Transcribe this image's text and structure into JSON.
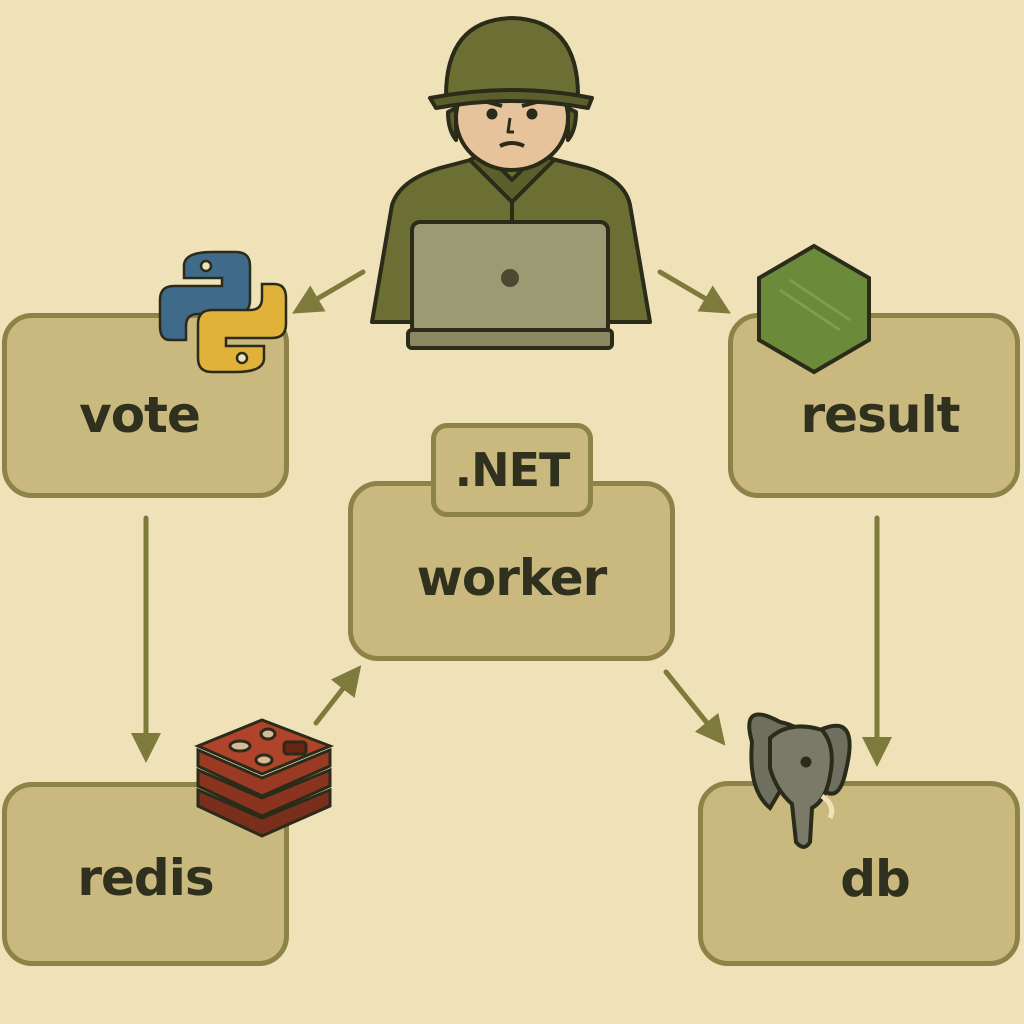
{
  "nodes": {
    "vote": {
      "label": "vote",
      "icon": "python-logo-icon"
    },
    "result": {
      "label": "result",
      "icon": "nodejs-hexagon-icon"
    },
    "worker": {
      "label": "worker",
      "tag": ".NET"
    },
    "redis": {
      "label": "redis",
      "icon": "redis-stack-icon"
    },
    "db": {
      "label": "db",
      "icon": "postgres-elephant-icon"
    }
  },
  "user": {
    "icon": "soldier-with-laptop-icon"
  },
  "edges": [
    {
      "from": "user",
      "to": "vote"
    },
    {
      "from": "user",
      "to": "result"
    },
    {
      "from": "vote",
      "to": "redis"
    },
    {
      "from": "redis",
      "to": "worker"
    },
    {
      "from": "worker",
      "to": "db"
    },
    {
      "from": "result",
      "to": "db"
    }
  ],
  "colors": {
    "background": "#efe2b9",
    "node_fill": "#c9b97f",
    "node_border": "#8d8248",
    "arrow": "#7d7a3c",
    "text": "#2f301d",
    "uniform": "#6b6f33",
    "python_blue": "#3f6a8a",
    "python_yellow": "#e0b23a",
    "node_green": "#6b8a3a",
    "redis_red": "#9a3a24",
    "elephant_gray": "#6f6f5f"
  }
}
